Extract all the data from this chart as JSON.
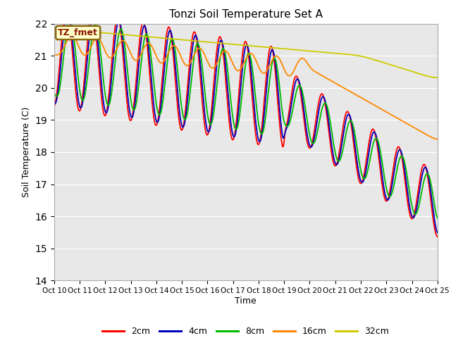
{
  "title": "Tonzi Soil Temperature Set A",
  "xlabel": "Time",
  "ylabel": "Soil Temperature (C)",
  "ylim": [
    14.0,
    22.0
  ],
  "yticks": [
    14.0,
    15.0,
    16.0,
    17.0,
    18.0,
    19.0,
    20.0,
    21.0,
    22.0
  ],
  "annotation": "TZ_fmet",
  "bg_color": "#e8e8e8",
  "legend": [
    "2cm",
    "4cm",
    "8cm",
    "16cm",
    "32cm"
  ],
  "line_colors": [
    "#ff0000",
    "#0000bb",
    "#00bb00",
    "#ff8800",
    "#cccc00"
  ],
  "x_tick_labels": [
    "Oct 10",
    "Oct 11",
    "Oct 12",
    "Oct 13",
    "Oct 14",
    "Oct 15",
    "Oct 16",
    "Oct 17",
    "Oct 18",
    "Oct 19",
    "Oct 20",
    "Oct 21",
    "Oct 22",
    "Oct 23",
    "Oct 24",
    "Oct 25"
  ],
  "n_points": 720
}
